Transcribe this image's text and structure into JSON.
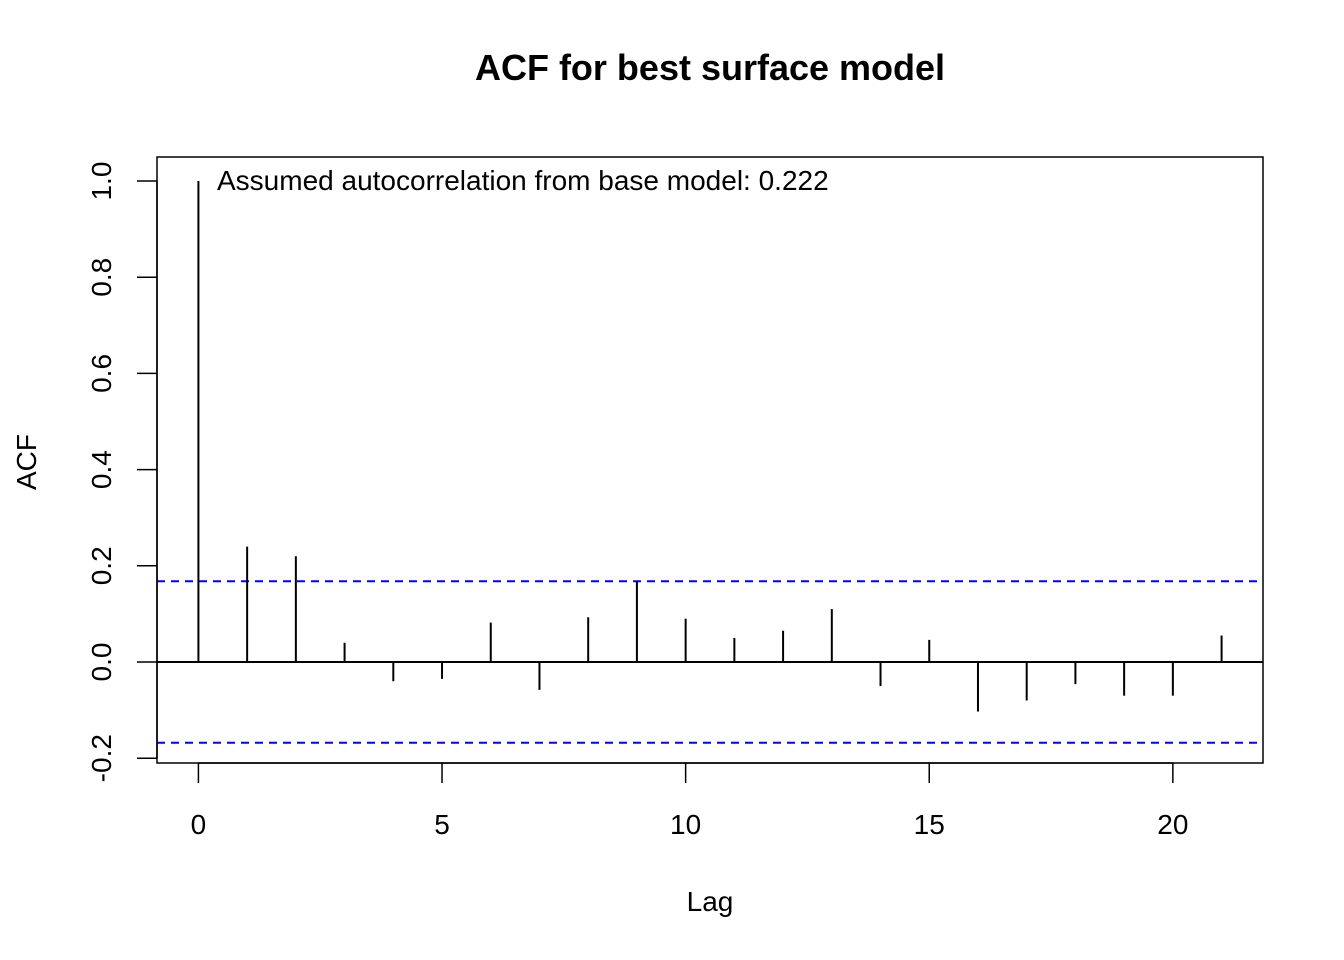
{
  "chart_data": {
    "type": "bar",
    "title": "ACF for best surface model",
    "xlabel": "Lag",
    "ylabel": "ACF",
    "xlim": [
      -0.85,
      21.85
    ],
    "ylim": [
      -0.21,
      1.05
    ],
    "x_ticks": [
      0,
      5,
      10,
      15,
      20
    ],
    "x_tick_labels": [
      "0",
      "5",
      "10",
      "15",
      "20"
    ],
    "y_ticks": [
      -0.2,
      0.0,
      0.2,
      0.4,
      0.6,
      0.8,
      1.0
    ],
    "y_tick_labels": [
      "-0.2",
      "0.0",
      "0.2",
      "0.4",
      "0.6",
      "0.8",
      "1.0"
    ],
    "annotation": "Assumed autocorrelation from base model: 0.222",
    "series": [
      {
        "x": [
          0,
          1,
          2,
          3,
          4,
          5,
          6,
          7,
          8,
          9,
          10,
          11,
          12,
          13,
          14,
          15,
          16,
          17,
          18,
          19,
          20,
          21
        ],
        "values": [
          1.0,
          0.24,
          0.22,
          0.04,
          -0.04,
          -0.035,
          0.082,
          -0.058,
          0.093,
          0.168,
          0.09,
          0.05,
          0.065,
          0.11,
          -0.05,
          0.046,
          -0.103,
          -0.08,
          -0.046,
          -0.07,
          -0.07,
          0.055
        ]
      }
    ],
    "confidence_bounds": [
      0.168,
      -0.168
    ],
    "colors": {
      "bars": "#000000",
      "confidence_lines": "#0000ff",
      "zero_line": "#000000"
    },
    "grid": false
  }
}
